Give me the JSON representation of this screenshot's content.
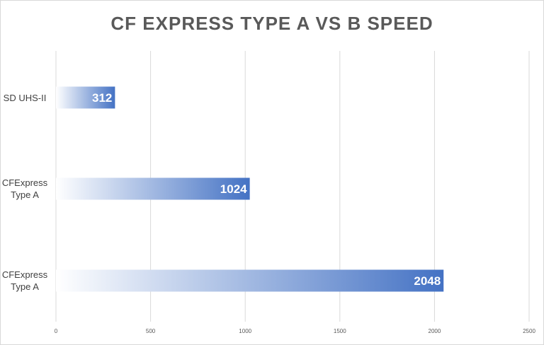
{
  "chart_data": {
    "type": "bar",
    "orientation": "horizontal",
    "title": "CF EXPRESS TYPE A VS B SPEED",
    "categories": [
      "SD UHS-II",
      "CFExpress Type A",
      "CFExpress Type A"
    ],
    "values": [
      312,
      1024,
      2048
    ],
    "xlabel": "",
    "ylabel": "",
    "xlim": [
      0,
      2500
    ],
    "x_ticks": [
      0,
      500,
      1000,
      1500,
      2000,
      2500
    ],
    "grid": "vertical",
    "legend": "none",
    "bar_color": "#4472c4",
    "bar_gradient_start": "#ffffff"
  }
}
